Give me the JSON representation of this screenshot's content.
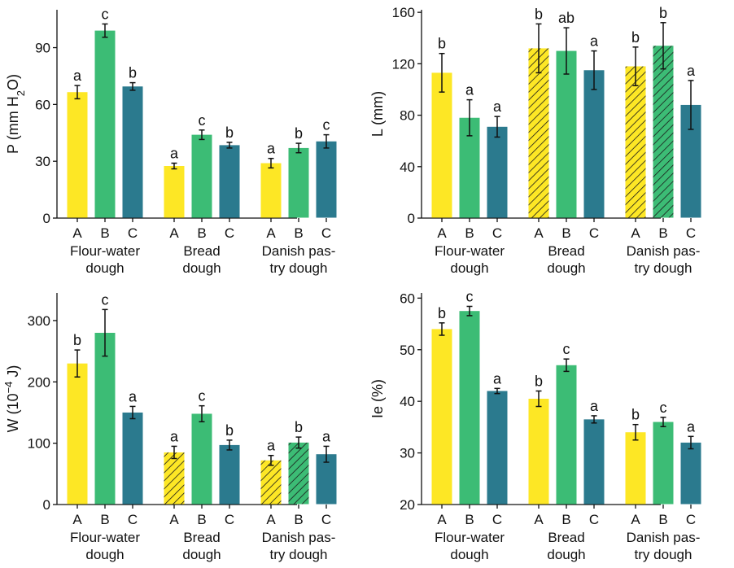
{
  "colors": {
    "A": "#fde725",
    "B": "#3cbc75",
    "C": "#2b7a8e",
    "hatch_line": "#1a1a1a"
  },
  "chart_data": [
    {
      "type": "bar",
      "ylabel": "P (mm H₂O)",
      "ylim": [
        0,
        110
      ],
      "yticks": [
        0,
        30,
        60,
        90
      ],
      "groups": [
        "Flour-water\ndough",
        "Bread\ndough",
        "Danish pas-\ntry dough"
      ],
      "series_letters": [
        "A",
        "B",
        "C"
      ],
      "bars": [
        {
          "group": 0,
          "series": "A",
          "value": 66.5,
          "err": 3.5,
          "letter": "a",
          "hatched": false
        },
        {
          "group": 0,
          "series": "B",
          "value": 99,
          "err": 3.5,
          "letter": "c",
          "hatched": false
        },
        {
          "group": 0,
          "series": "C",
          "value": 69.5,
          "err": 2,
          "letter": "b",
          "hatched": false
        },
        {
          "group": 1,
          "series": "A",
          "value": 27.5,
          "err": 1.5,
          "letter": "a",
          "hatched": false
        },
        {
          "group": 1,
          "series": "B",
          "value": 44,
          "err": 2.5,
          "letter": "c",
          "hatched": false
        },
        {
          "group": 1,
          "series": "C",
          "value": 38.5,
          "err": 1.5,
          "letter": "b",
          "hatched": false
        },
        {
          "group": 2,
          "series": "A",
          "value": 29,
          "err": 2.5,
          "letter": "a",
          "hatched": false
        },
        {
          "group": 2,
          "series": "B",
          "value": 37,
          "err": 2.5,
          "letter": "b",
          "hatched": false
        },
        {
          "group": 2,
          "series": "C",
          "value": 40.5,
          "err": 3.5,
          "letter": "c",
          "hatched": false
        }
      ]
    },
    {
      "type": "bar",
      "ylabel": "L (mm)",
      "ylim": [
        0,
        162
      ],
      "yticks": [
        0,
        40,
        80,
        120,
        160
      ],
      "groups": [
        "Flour-water\ndough",
        "Bread\ndough",
        "Danish pas-\ntry dough"
      ],
      "series_letters": [
        "A",
        "B",
        "C"
      ],
      "bars": [
        {
          "group": 0,
          "series": "A",
          "value": 113,
          "err": 15,
          "letter": "b",
          "hatched": false
        },
        {
          "group": 0,
          "series": "B",
          "value": 78,
          "err": 14,
          "letter": "a",
          "hatched": false
        },
        {
          "group": 0,
          "series": "C",
          "value": 71,
          "err": 8,
          "letter": "a",
          "hatched": false
        },
        {
          "group": 1,
          "series": "A",
          "value": 132,
          "err": 19,
          "letter": "b",
          "hatched": true
        },
        {
          "group": 1,
          "series": "B",
          "value": 130,
          "err": 18,
          "letter": "ab",
          "hatched": false
        },
        {
          "group": 1,
          "series": "C",
          "value": 115,
          "err": 15,
          "letter": "a",
          "hatched": false
        },
        {
          "group": 2,
          "series": "A",
          "value": 118,
          "err": 15,
          "letter": "b",
          "hatched": true
        },
        {
          "group": 2,
          "series": "B",
          "value": 134,
          "err": 18,
          "letter": "b",
          "hatched": true
        },
        {
          "group": 2,
          "series": "C",
          "value": 88,
          "err": 19,
          "letter": "a",
          "hatched": false
        }
      ]
    },
    {
      "type": "bar",
      "ylabel": "W (10⁻⁴ J)",
      "ylim": [
        0,
        345
      ],
      "yticks": [
        0,
        100,
        200,
        300
      ],
      "groups": [
        "Flour-water\ndough",
        "Bread\ndough",
        "Danish pas-\ntry dough"
      ],
      "series_letters": [
        "A",
        "B",
        "C"
      ],
      "bars": [
        {
          "group": 0,
          "series": "A",
          "value": 230,
          "err": 22,
          "letter": "b",
          "hatched": false
        },
        {
          "group": 0,
          "series": "B",
          "value": 280,
          "err": 38,
          "letter": "c",
          "hatched": false
        },
        {
          "group": 0,
          "series": "C",
          "value": 150,
          "err": 10,
          "letter": "a",
          "hatched": false
        },
        {
          "group": 1,
          "series": "A",
          "value": 85,
          "err": 10,
          "letter": "a",
          "hatched": true
        },
        {
          "group": 1,
          "series": "B",
          "value": 148,
          "err": 13,
          "letter": "c",
          "hatched": false
        },
        {
          "group": 1,
          "series": "C",
          "value": 97,
          "err": 8,
          "letter": "b",
          "hatched": false
        },
        {
          "group": 2,
          "series": "A",
          "value": 72,
          "err": 8,
          "letter": "a",
          "hatched": true
        },
        {
          "group": 2,
          "series": "B",
          "value": 101,
          "err": 9,
          "letter": "b",
          "hatched": true
        },
        {
          "group": 2,
          "series": "C",
          "value": 82,
          "err": 13,
          "letter": "a",
          "hatched": false
        }
      ]
    },
    {
      "type": "bar",
      "ylabel": "Ie (%)",
      "ylim": [
        20,
        61
      ],
      "yticks": [
        20,
        30,
        40,
        50,
        60
      ],
      "groups": [
        "Flour-water\ndough",
        "Bread\ndough",
        "Danish pas-\ntry dough"
      ],
      "series_letters": [
        "A",
        "B",
        "C"
      ],
      "bars": [
        {
          "group": 0,
          "series": "A",
          "value": 54,
          "err": 1.2,
          "letter": "b",
          "hatched": false
        },
        {
          "group": 0,
          "series": "B",
          "value": 57.5,
          "err": 0.9,
          "letter": "c",
          "hatched": false
        },
        {
          "group": 0,
          "series": "C",
          "value": 42,
          "err": 0.5,
          "letter": "a",
          "hatched": false
        },
        {
          "group": 1,
          "series": "A",
          "value": 40.5,
          "err": 1.5,
          "letter": "b",
          "hatched": false
        },
        {
          "group": 1,
          "series": "B",
          "value": 47,
          "err": 1.2,
          "letter": "c",
          "hatched": false
        },
        {
          "group": 1,
          "series": "C",
          "value": 36.5,
          "err": 0.7,
          "letter": "a",
          "hatched": false
        },
        {
          "group": 2,
          "series": "A",
          "value": 34,
          "err": 1.5,
          "letter": "b",
          "hatched": false
        },
        {
          "group": 2,
          "series": "B",
          "value": 36,
          "err": 0.9,
          "letter": "c",
          "hatched": false
        },
        {
          "group": 2,
          "series": "C",
          "value": 32,
          "err": 1.2,
          "letter": "a",
          "hatched": false
        }
      ]
    }
  ]
}
